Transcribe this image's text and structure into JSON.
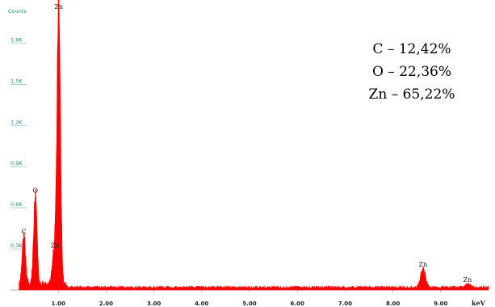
{
  "chart_data": {
    "type": "line",
    "title": "",
    "ylabel": "Counts",
    "xlabel": "keV",
    "xlim": [
      0,
      10.0
    ],
    "ylim": [
      0,
      2.05
    ],
    "y_ticks": [
      0.3,
      0.6,
      0.9,
      1.2,
      1.5,
      1.8
    ],
    "y_tick_labels": [
      "0.3K",
      "0.6K",
      "0.9K",
      "1.2K",
      "1.5K",
      "1.8K"
    ],
    "x_ticks": [
      1.0,
      2.0,
      3.0,
      4.0,
      5.0,
      6.0,
      7.0,
      8.0,
      9.0
    ],
    "x_tick_labels": [
      "1.00",
      "2.00",
      "3.00",
      "4.00",
      "5.00",
      "6.00",
      "7.00",
      "8.00",
      "9.00"
    ],
    "grid": false,
    "series_color": "#ff0000",
    "baseline": 0.02,
    "peaks": [
      {
        "label": "C",
        "x": 0.28,
        "y": 0.38,
        "width": 0.035
      },
      {
        "label": "O",
        "x": 0.52,
        "y": 0.68,
        "width": 0.035
      },
      {
        "label": "Zn",
        "x": 0.93,
        "y": 0.28,
        "width": 0.05
      },
      {
        "label": "Zn",
        "x": 1.01,
        "y": 2.02,
        "width": 0.035
      },
      {
        "label": "Zn",
        "x": 8.63,
        "y": 0.14,
        "width": 0.05
      },
      {
        "label": "Zn",
        "x": 9.56,
        "y": 0.03,
        "width": 0.05
      }
    ],
    "annotations": [
      {
        "text": "C – 12,42%"
      },
      {
        "text": "O – 22,36%"
      },
      {
        "text": "Zn – 65,22%"
      }
    ]
  }
}
